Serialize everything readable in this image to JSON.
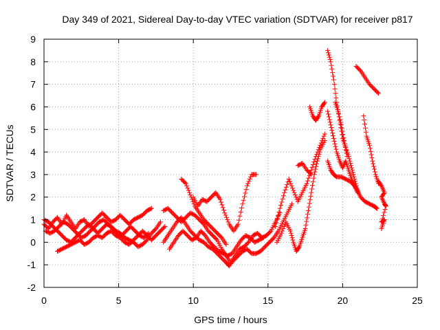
{
  "chart_data": {
    "type": "scatter",
    "title": "Day 349 of 2021, Sidereal Day-to-day VTEC variation (SDTVAR) for receiver p817",
    "xlabel": "GPS time / hours",
    "ylabel": "SDTVAR / TECUs",
    "xlim": [
      0,
      25
    ],
    "ylim": [
      -2,
      9
    ],
    "xticks": [
      0,
      5,
      10,
      15,
      20,
      25
    ],
    "yticks": [
      -2,
      -1,
      0,
      1,
      2,
      3,
      4,
      5,
      6,
      7,
      8,
      9
    ],
    "xtick_labels": [
      "0",
      "5",
      "10",
      "15",
      "20",
      "25"
    ],
    "ytick_labels": [
      "-2",
      "-1",
      "0",
      "1",
      "2",
      "3",
      "4",
      "5",
      "6",
      "7",
      "8",
      "9"
    ],
    "grid": true,
    "marker": "+",
    "color": "#ff0000",
    "series": [
      {
        "values": [
          [
            0.0,
            0.8
          ],
          [
            0.3,
            0.6
          ],
          [
            0.6,
            0.9
          ],
          [
            0.9,
            1.1
          ],
          [
            1.2,
            0.8
          ],
          [
            1.5,
            1.2
          ],
          [
            1.8,
            0.9
          ],
          [
            2.1,
            0.6
          ],
          [
            2.4,
            0.9
          ],
          [
            2.7,
            1.0
          ],
          [
            3.0,
            0.7
          ],
          [
            3.3,
            0.9
          ],
          [
            3.6,
            1.1
          ],
          [
            3.9,
            1.3
          ],
          [
            4.2,
            1.1
          ],
          [
            4.5,
            0.9
          ],
          [
            4.8,
            1.0
          ],
          [
            5.1,
            1.2
          ],
          [
            5.4,
            1.0
          ],
          [
            5.7,
            0.8
          ],
          [
            6.0,
            1.0
          ],
          [
            6.3,
            1.1
          ],
          [
            6.6,
            1.2
          ],
          [
            6.9,
            1.4
          ],
          [
            7.2,
            1.5
          ]
        ]
      },
      {
        "values": [
          [
            0.0,
            1.0
          ],
          [
            0.3,
            0.9
          ],
          [
            0.6,
            0.7
          ],
          [
            0.9,
            0.5
          ],
          [
            1.2,
            0.3
          ],
          [
            1.5,
            0.1
          ],
          [
            1.8,
            0.0
          ],
          [
            2.1,
            0.2
          ],
          [
            2.4,
            0.4
          ],
          [
            2.7,
            0.6
          ],
          [
            3.0,
            0.8
          ],
          [
            3.3,
            0.6
          ],
          [
            3.6,
            0.4
          ],
          [
            3.9,
            0.6
          ],
          [
            4.2,
            0.8
          ],
          [
            4.5,
            0.7
          ],
          [
            4.8,
            0.5
          ],
          [
            5.1,
            0.4
          ],
          [
            5.4,
            0.2
          ],
          [
            5.7,
            0.1
          ],
          [
            6.0,
            0.0
          ],
          [
            6.3,
            -0.2
          ],
          [
            6.6,
            -0.1
          ],
          [
            6.9,
            0.1
          ],
          [
            7.2,
            0.4
          ],
          [
            7.5,
            0.6
          ],
          [
            7.8,
            0.9
          ]
        ]
      },
      {
        "values": [
          [
            0.1,
            0.5
          ],
          [
            0.4,
            0.4
          ],
          [
            0.7,
            0.5
          ],
          [
            1.0,
            0.7
          ],
          [
            1.3,
            0.9
          ],
          [
            1.6,
            0.8
          ],
          [
            1.9,
            0.6
          ],
          [
            2.2,
            0.4
          ],
          [
            2.5,
            0.2
          ],
          [
            2.8,
            0.3
          ],
          [
            3.1,
            0.5
          ],
          [
            3.4,
            0.7
          ],
          [
            3.7,
            0.9
          ],
          [
            4.0,
            1.0
          ],
          [
            4.3,
            0.8
          ],
          [
            4.6,
            0.6
          ],
          [
            4.9,
            0.4
          ],
          [
            5.2,
            0.3
          ],
          [
            5.5,
            0.5
          ],
          [
            5.8,
            0.7
          ],
          [
            6.1,
            0.5
          ],
          [
            6.4,
            0.3
          ],
          [
            6.7,
            0.2
          ],
          [
            7.0,
            0.4
          ]
        ]
      },
      {
        "values": [
          [
            0.9,
            -0.4
          ],
          [
            1.2,
            -0.3
          ],
          [
            1.5,
            -0.2
          ],
          [
            1.8,
            -0.1
          ],
          [
            2.1,
            0.0
          ],
          [
            2.4,
            0.1
          ],
          [
            2.7,
            -0.1
          ],
          [
            3.0,
            0.0
          ],
          [
            3.3,
            0.2
          ],
          [
            3.6,
            0.3
          ],
          [
            3.9,
            0.2
          ],
          [
            4.2,
            0.4
          ],
          [
            4.5,
            0.5
          ],
          [
            4.8,
            0.3
          ],
          [
            5.1,
            0.2
          ],
          [
            5.4,
            0.0
          ],
          [
            5.7,
            -0.1
          ],
          [
            6.0,
            0.1
          ],
          [
            6.3,
            0.3
          ],
          [
            6.6,
            0.5
          ],
          [
            6.9,
            0.3
          ],
          [
            7.2,
            0.1
          ],
          [
            7.5,
            0.3
          ],
          [
            7.8,
            0.5
          ],
          [
            8.1,
            0.7
          ]
        ]
      },
      {
        "values": [
          [
            8.0,
            1.4
          ],
          [
            8.3,
            1.5
          ],
          [
            8.6,
            1.3
          ],
          [
            8.9,
            1.1
          ],
          [
            9.2,
            0.9
          ],
          [
            9.5,
            1.1
          ],
          [
            9.8,
            1.3
          ],
          [
            10.1,
            1.2
          ],
          [
            10.4,
            1.0
          ],
          [
            10.7,
            0.8
          ],
          [
            11.0,
            0.5
          ],
          [
            11.3,
            0.3
          ],
          [
            11.6,
            0.1
          ],
          [
            11.9,
            -0.3
          ],
          [
            12.2,
            -0.6
          ],
          [
            12.5,
            -0.9
          ],
          [
            12.8,
            -0.6
          ],
          [
            13.1,
            -0.3
          ],
          [
            13.4,
            -0.2
          ],
          [
            13.7,
            0.0
          ],
          [
            14.0,
            0.3
          ],
          [
            14.3,
            0.4
          ],
          [
            14.6,
            0.2
          ],
          [
            14.9,
            0.3
          ],
          [
            15.2,
            0.5
          ],
          [
            15.5,
            0.9
          ],
          [
            15.8,
            1.3
          ]
        ]
      },
      {
        "values": [
          [
            8.0,
            0.0
          ],
          [
            8.3,
            0.3
          ],
          [
            8.6,
            0.6
          ],
          [
            8.9,
            0.9
          ],
          [
            9.2,
            1.1
          ],
          [
            9.5,
            0.8
          ],
          [
            9.8,
            0.5
          ],
          [
            10.1,
            0.3
          ],
          [
            10.4,
            0.1
          ],
          [
            10.7,
            0.0
          ],
          [
            11.0,
            -0.2
          ],
          [
            11.3,
            -0.3
          ],
          [
            11.6,
            -0.5
          ],
          [
            11.9,
            -0.7
          ],
          [
            12.2,
            -0.9
          ],
          [
            12.4,
            -1.05
          ],
          [
            12.7,
            -0.8
          ],
          [
            13.0,
            -0.6
          ],
          [
            13.3,
            -0.4
          ],
          [
            13.6,
            -0.3
          ],
          [
            13.9,
            -0.5
          ],
          [
            14.2,
            -0.5
          ],
          [
            14.5,
            -0.4
          ],
          [
            14.8,
            -0.2
          ],
          [
            15.1,
            0.0
          ],
          [
            15.4,
            0.2
          ],
          [
            15.7,
            0.5
          ],
          [
            16.0,
            0.9
          ],
          [
            16.3,
            1.3
          ],
          [
            16.6,
            1.7
          ]
        ]
      },
      {
        "values": [
          [
            8.4,
            -0.3
          ],
          [
            8.7,
            0.0
          ],
          [
            9.0,
            0.3
          ],
          [
            9.3,
            0.5
          ],
          [
            9.6,
            0.3
          ],
          [
            9.9,
            0.1
          ],
          [
            10.2,
            0.2
          ],
          [
            10.5,
            0.5
          ],
          [
            10.8,
            0.3
          ],
          [
            11.1,
            0.0
          ],
          [
            11.4,
            -0.2
          ],
          [
            11.7,
            -0.4
          ],
          [
            12.0,
            -0.5
          ],
          [
            12.3,
            -0.6
          ],
          [
            12.6,
            -0.5
          ],
          [
            12.9,
            -0.2
          ],
          [
            13.2,
            0.1
          ],
          [
            13.5,
            0.3
          ],
          [
            13.8,
            0.2
          ],
          [
            14.1,
            0.0
          ],
          [
            14.4,
            0.1
          ],
          [
            14.7,
            0.2
          ]
        ]
      },
      {
        "values": [
          [
            9.2,
            2.8
          ],
          [
            9.5,
            2.6
          ],
          [
            9.8,
            2.1
          ],
          [
            10.1,
            1.6
          ],
          [
            10.4,
            1.3
          ],
          [
            10.7,
            1.0
          ],
          [
            11.0,
            0.8
          ],
          [
            11.3,
            0.6
          ],
          [
            11.6,
            0.4
          ],
          [
            11.9,
            0.2
          ],
          [
            12.2,
            -0.1
          ]
        ]
      },
      {
        "values": [
          [
            10.0,
            2.0
          ],
          [
            10.3,
            1.6
          ],
          [
            10.6,
            1.9
          ],
          [
            10.9,
            1.8
          ],
          [
            11.2,
            2.0
          ],
          [
            11.5,
            2.2
          ],
          [
            11.8,
            1.9
          ],
          [
            12.1,
            1.3
          ],
          [
            12.4,
            0.8
          ],
          [
            12.7,
            0.5
          ],
          [
            13.0,
            0.8
          ],
          [
            13.3,
            1.7
          ],
          [
            13.6,
            2.5
          ],
          [
            13.9,
            3.0
          ],
          [
            14.2,
            3.0
          ]
        ]
      },
      {
        "values": [
          [
            15.5,
            0.7
          ],
          [
            15.8,
            1.5
          ],
          [
            16.1,
            2.2
          ],
          [
            16.4,
            2.8
          ],
          [
            16.7,
            2.3
          ],
          [
            17.0,
            1.8
          ],
          [
            17.3,
            2.2
          ],
          [
            17.6,
            2.6
          ],
          [
            17.9,
            3.2
          ],
          [
            18.2,
            3.8
          ],
          [
            18.5,
            4.3
          ],
          [
            18.8,
            4.8
          ]
        ]
      },
      {
        "values": [
          [
            15.6,
            0.0
          ],
          [
            15.9,
            0.4
          ],
          [
            16.2,
            0.9
          ],
          [
            16.5,
            0.5
          ],
          [
            16.7,
            0.0
          ],
          [
            16.9,
            -0.4
          ],
          [
            17.1,
            -0.2
          ],
          [
            17.3,
            0.2
          ],
          [
            17.5,
            0.6
          ],
          [
            17.7,
            1.4
          ],
          [
            17.9,
            2.2
          ],
          [
            18.1,
            3.0
          ],
          [
            18.3,
            3.6
          ],
          [
            18.5,
            4.1
          ],
          [
            18.8,
            4.5
          ]
        ]
      },
      {
        "values": [
          [
            17.0,
            3.4
          ],
          [
            17.3,
            3.5
          ],
          [
            17.6,
            3.2
          ],
          [
            17.9,
            3.0
          ]
        ]
      },
      {
        "values": [
          [
            17.8,
            6.0
          ],
          [
            18.0,
            5.6
          ],
          [
            18.2,
            5.4
          ],
          [
            18.4,
            5.6
          ],
          [
            18.6,
            6.0
          ],
          [
            18.8,
            6.2
          ]
        ]
      },
      {
        "values": [
          [
            19.0,
            8.5
          ],
          [
            19.2,
            8.0
          ],
          [
            19.4,
            7.2
          ],
          [
            19.6,
            6.2
          ],
          [
            19.8,
            5.4
          ],
          [
            20.0,
            4.6
          ],
          [
            20.2,
            4.2
          ],
          [
            20.4,
            3.8
          ],
          [
            20.6,
            3.3
          ],
          [
            20.8,
            2.8
          ],
          [
            21.0,
            2.3
          ],
          [
            21.2,
            2.0
          ],
          [
            21.5,
            1.8
          ],
          [
            21.8,
            1.7
          ],
          [
            22.1,
            1.6
          ],
          [
            22.3,
            1.5
          ]
        ]
      },
      {
        "values": [
          [
            19.0,
            5.8
          ],
          [
            19.2,
            5.2
          ],
          [
            19.4,
            4.6
          ],
          [
            19.6,
            4.0
          ],
          [
            19.8,
            3.6
          ],
          [
            20.0,
            3.3
          ],
          [
            20.2,
            3.6
          ],
          [
            20.4,
            3.2
          ],
          [
            20.6,
            2.8
          ],
          [
            20.8,
            2.5
          ],
          [
            21.0,
            2.2
          ]
        ]
      },
      {
        "values": [
          [
            19.0,
            3.6
          ],
          [
            19.2,
            3.2
          ],
          [
            19.4,
            3.0
          ],
          [
            19.6,
            2.9
          ],
          [
            19.9,
            2.9
          ],
          [
            20.2,
            2.8
          ],
          [
            20.5,
            2.7
          ],
          [
            20.8,
            2.5
          ],
          [
            21.0,
            2.3
          ]
        ]
      },
      {
        "values": [
          [
            19.5,
            6.2
          ],
          [
            19.7,
            5.8
          ],
          [
            19.9,
            5.2
          ],
          [
            20.1,
            4.5
          ],
          [
            20.3,
            3.8
          ]
        ]
      },
      {
        "values": [
          [
            20.9,
            7.8
          ],
          [
            21.2,
            7.6
          ],
          [
            21.5,
            7.3
          ],
          [
            21.8,
            7.0
          ],
          [
            22.1,
            6.8
          ],
          [
            22.4,
            6.6
          ]
        ]
      },
      {
        "values": [
          [
            21.4,
            5.6
          ],
          [
            21.6,
            4.7
          ],
          [
            21.8,
            4.3
          ],
          [
            22.0,
            3.6
          ],
          [
            22.2,
            3.0
          ],
          [
            22.4,
            2.6
          ]
        ]
      },
      {
        "values": [
          [
            22.4,
            2.7
          ],
          [
            22.6,
            2.5
          ],
          [
            22.8,
            2.2
          ],
          [
            22.6,
            2.0
          ],
          [
            22.8,
            1.7
          ],
          [
            22.9,
            1.6
          ],
          [
            22.6,
            0.9
          ],
          [
            22.8,
            1.0
          ],
          [
            22.6,
            0.6
          ]
        ]
      }
    ]
  }
}
